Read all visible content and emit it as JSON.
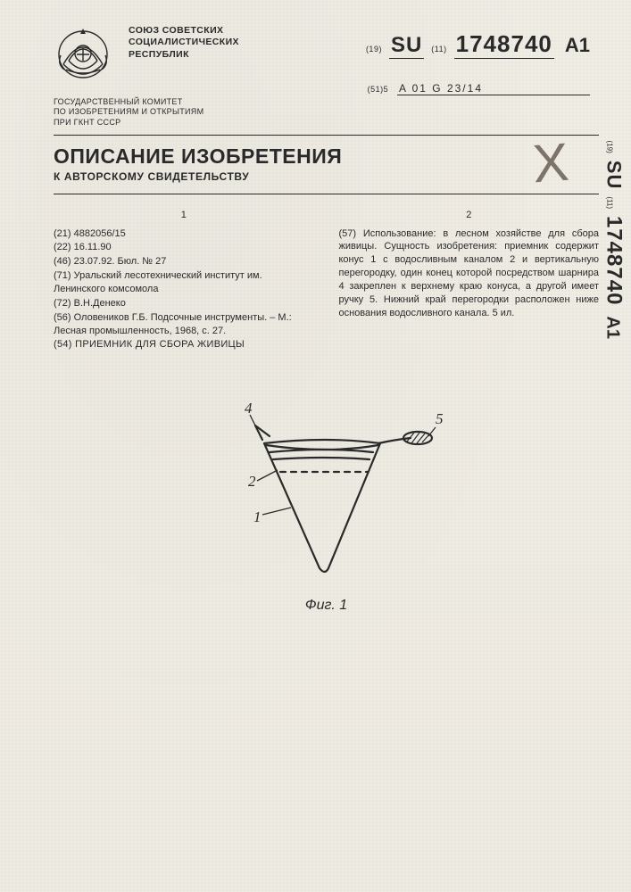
{
  "header": {
    "issuer_lines": "СОЮЗ СОВЕТСКИХ\nСОЦИАЛИСТИЧЕСКИХ\nРЕСПУБЛИК",
    "committee_lines": "ГОСУДАРСТВЕННЫЙ КОМИТЕТ\nПО ИЗОБРЕТЕНИЯМ И ОТКРЫТИЯМ\nПРИ ГКНТ СССР",
    "code19": "(19)",
    "country": "SU",
    "code11": "(11)",
    "pub_number": "1748740",
    "kind": "A1",
    "ipc_label": "(51)5",
    "ipc": "A 01 G 23/14"
  },
  "title": {
    "main": "ОПИСАНИЕ ИЗОБРЕТЕНИЯ",
    "sub": "К АВТОРСКОМУ СВИДЕТЕЛЬСТВУ"
  },
  "columns": {
    "left_no": "1",
    "right_no": "2"
  },
  "biblio": {
    "l21": "(21) 4882056/15",
    "l22": "(22) 16.11.90",
    "l46": "(46) 23.07.92. Бюл. № 27",
    "l71": "(71) Уральский лесотехнический институт им. Ленинского комсомола",
    "l72": "(72) В.Н.Денеко",
    "l56": "(56) Оловеников Г.Б. Подсочные инструменты. – М.: Лесная промышленность, 1968, с. 27.",
    "l54": "(54) ПРИЕМНИК ДЛЯ СБОРА ЖИВИЦЫ"
  },
  "abstract": "(57) Использование: в лесном хозяйстве для сбора живицы. Сущность изобретения: приемник содержит конус 1 с водосливным каналом 2 и вертикальную перегородку, один конец которой посредством шарнира 4 закреплен к верхнему краю конуса, а другой имеет ручку 5. Нижний край перегородки расположен ниже основания водосливного канала. 5 ил.",
  "figure": {
    "caption": "Фиг. 1",
    "labels": {
      "n1": "1",
      "n2": "2",
      "n4": "4",
      "n5": "5"
    },
    "colors": {
      "stroke": "#2a2a2a",
      "hatch": "#2a2a2a",
      "dash": "#2a2a2a"
    },
    "stroke_width": 2.2
  },
  "colors": {
    "paper": "#efece4",
    "ink": "#2a2a2a",
    "xmark": "#6a6055"
  }
}
